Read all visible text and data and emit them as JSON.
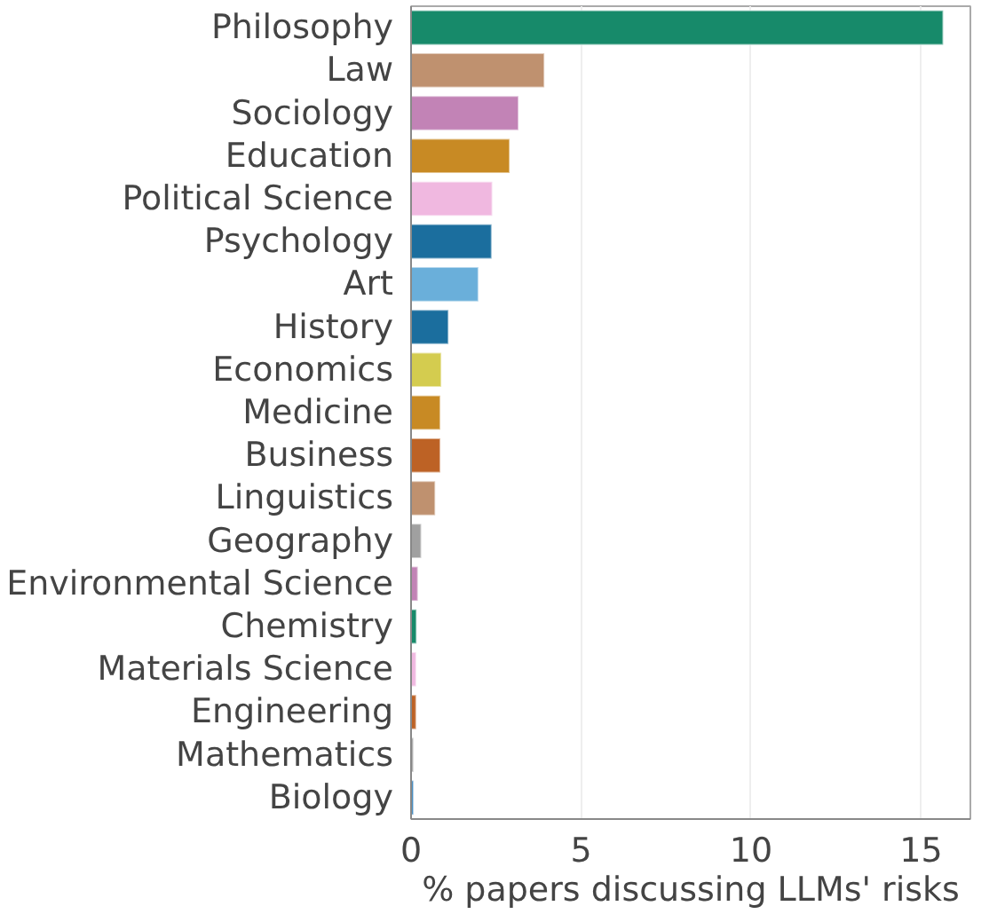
{
  "chart_data": {
    "type": "bar",
    "orientation": "horizontal",
    "xlabel": "% papers discussing LLMs' risks",
    "categories": [
      "Philosophy",
      "Law",
      "Sociology",
      "Education",
      "Political Science",
      "Psychology",
      "Art",
      "History",
      "Economics",
      "Medicine",
      "Business",
      "Linguistics",
      "Geography",
      "Environmental Science",
      "Chemistry",
      "Materials Science",
      "Engineering",
      "Mathematics",
      "Biology"
    ],
    "values": [
      15.65,
      3.92,
      3.16,
      2.9,
      2.39,
      2.37,
      1.98,
      1.1,
      0.89,
      0.86,
      0.86,
      0.71,
      0.3,
      0.2,
      0.16,
      0.15,
      0.15,
      0.07,
      0.07
    ],
    "colors": [
      "#178a6a",
      "#bf916f",
      "#c283b6",
      "#c88a24",
      "#f0b8e0",
      "#1b6e9e",
      "#6aafda",
      "#1b6e9e",
      "#d4cc4f",
      "#c88a24",
      "#bd6225",
      "#bf916f",
      "#a0a0a0",
      "#c283b6",
      "#178a6a",
      "#f0b8e0",
      "#bd6225",
      "#a0a0a0",
      "#2a7bb8"
    ],
    "xlim": [
      0,
      16.45
    ],
    "xticks": [
      0,
      5,
      10,
      15
    ],
    "grid": "x"
  }
}
